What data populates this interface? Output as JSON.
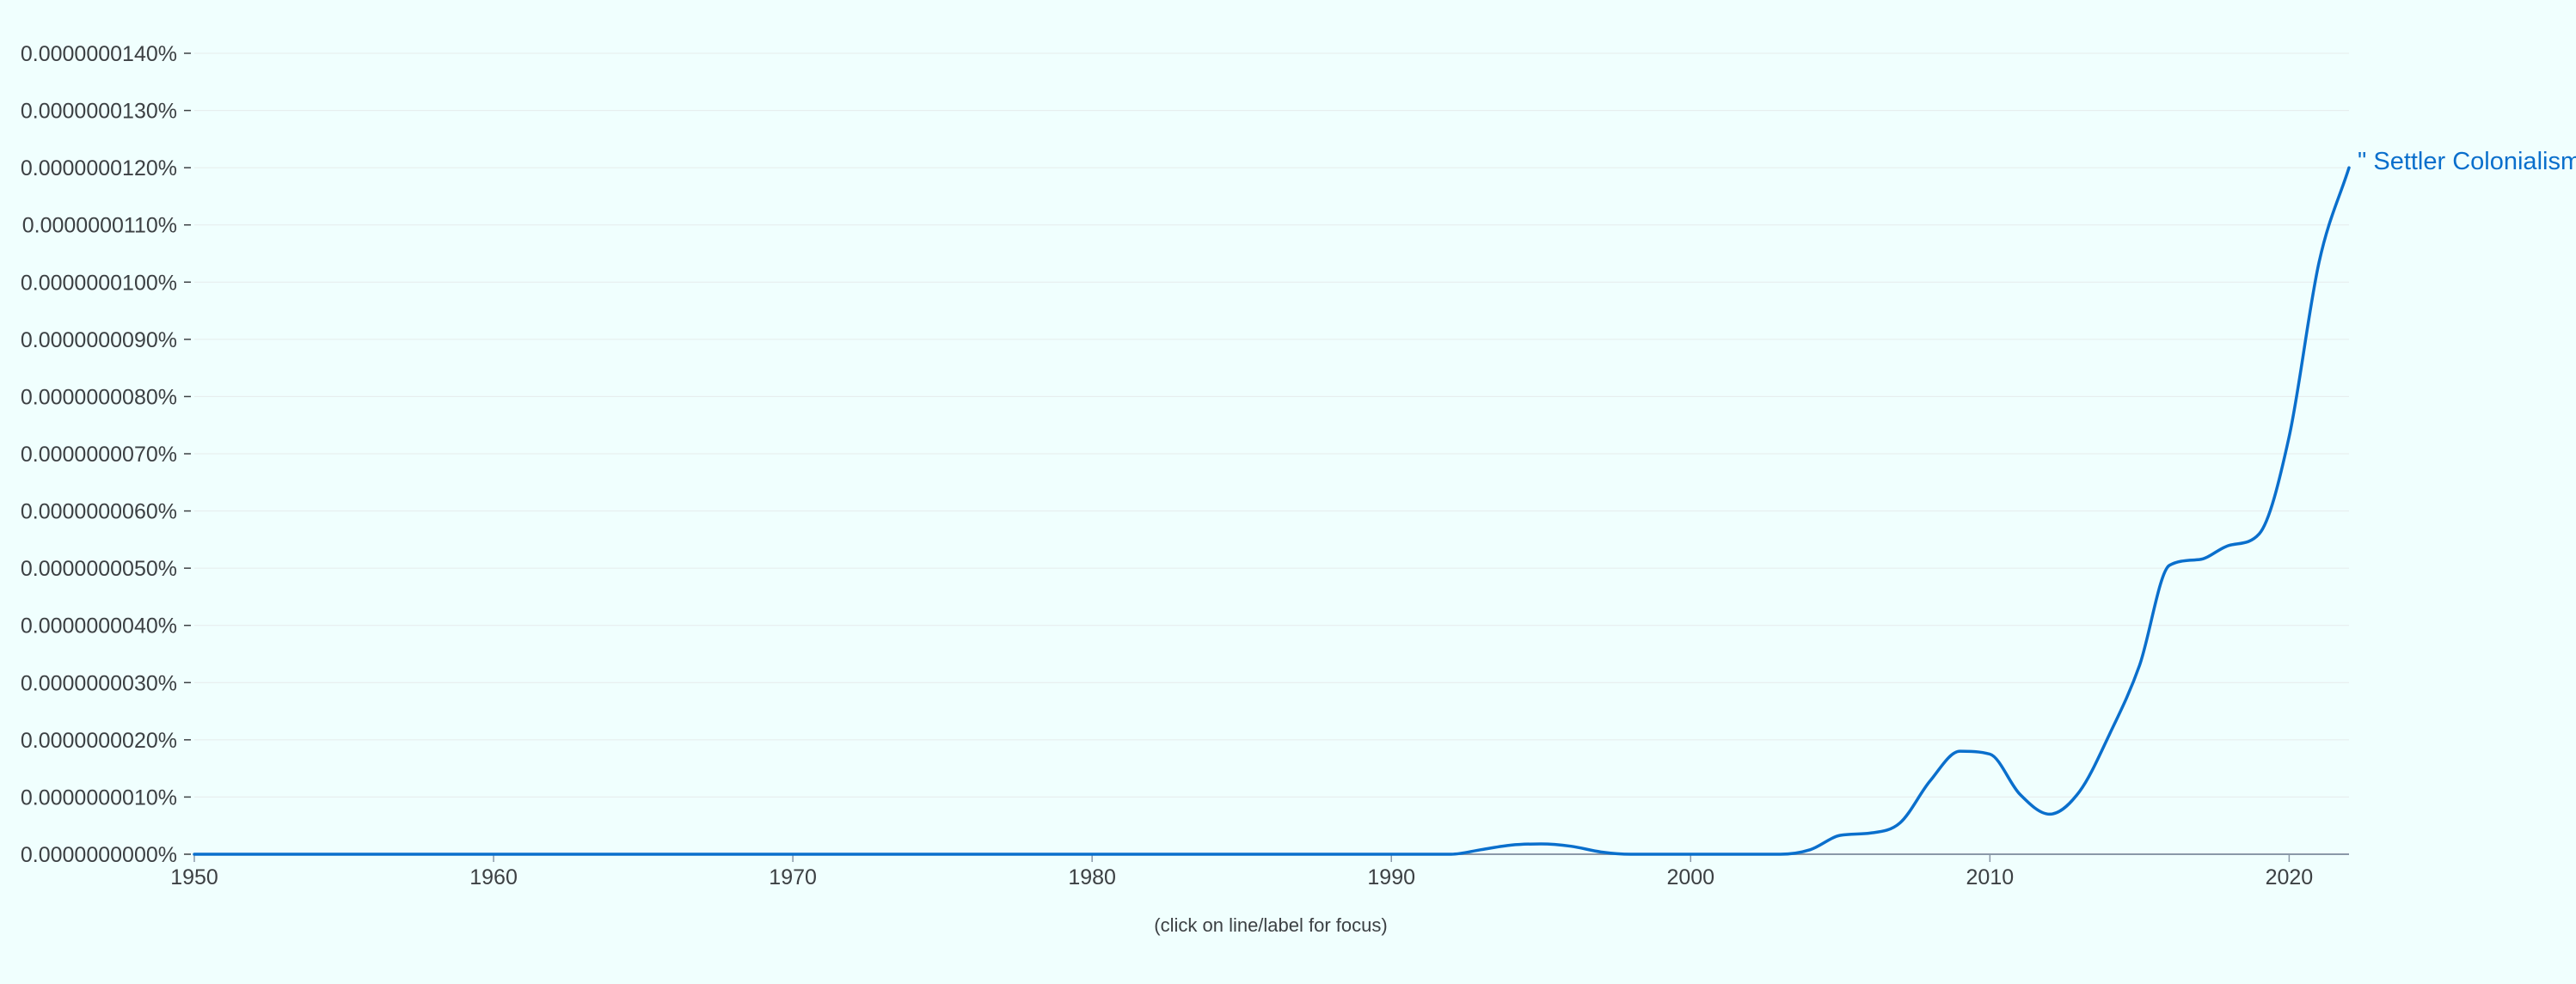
{
  "chart_data": {
    "type": "line",
    "title": "",
    "xlabel": "",
    "ylabel": "",
    "xlim": [
      1950,
      2022
    ],
    "ylim": [
      0,
      1.4e-07
    ],
    "x_ticks": [
      1950,
      1960,
      1970,
      1980,
      1990,
      2000,
      2010,
      2020
    ],
    "x_tick_labels": [
      "1950",
      "1960",
      "1970",
      "1980",
      "1990",
      "2000",
      "2010",
      "2020"
    ],
    "y_ticks": [
      0,
      1e-08,
      2e-08,
      3e-08,
      4e-08,
      5e-08,
      6e-08,
      7e-08,
      8e-08,
      9e-08,
      1e-07,
      1.1e-07,
      1.2e-07,
      1.3e-07,
      1.4e-07
    ],
    "y_tick_labels": [
      "0.0000000000%",
      "0.0000000010%",
      "0.0000000020%",
      "0.0000000030%",
      "0.0000000040%",
      "0.0000000050%",
      "0.0000000060%",
      "0.0000000070%",
      "0.0000000080%",
      "0.0000000090%",
      "0.0000000100%",
      "0.0000000110%",
      "0.0000000120%",
      "0.0000000130%",
      "0.0000000140%"
    ],
    "grid": true,
    "legend": "inline-end-label",
    "series": [
      {
        "name": "\" Settler Colonialism",
        "color": "#0a6fcc",
        "x": [
          1950,
          1960,
          1970,
          1980,
          1990,
          1992,
          1993,
          1994,
          1995,
          1996,
          1997,
          1998,
          2000,
          2003,
          2004,
          2005,
          2006,
          2007,
          2008,
          2009,
          2010,
          2011,
          2012,
          2013,
          2014,
          2015,
          2016,
          2017,
          2018,
          2019,
          2020,
          2021,
          2022
        ],
        "values": [
          0,
          0,
          0,
          0,
          0,
          0,
          8e-10,
          1.6e-09,
          1.8e-09,
          1.4e-09,
          4e-10,
          0,
          0,
          0,
          8e-10,
          3.3e-09,
          3.7e-09,
          5.5e-09,
          1.28e-08,
          1.8e-08,
          1.75e-08,
          1.05e-08,
          7e-09,
          1.1e-08,
          2.1e-08,
          3.3e-08,
          5.05e-08,
          5.15e-08,
          5.4e-08,
          5.6e-08,
          7.3e-08,
          1.035e-07,
          1.2e-07
        ]
      }
    ]
  },
  "footer": {
    "hint": "(click on line/label for focus)"
  },
  "colors": {
    "background": "#f0fffe",
    "gridline": "#e6ecec",
    "axis": "#8a98a8",
    "tick_text": "#3c4043",
    "series": "#0a6fcc"
  }
}
